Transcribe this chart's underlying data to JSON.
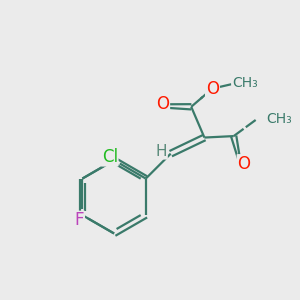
{
  "bg_color": "#ebebeb",
  "bond_color": "#3a7a6a",
  "bond_width": 1.6,
  "atom_colors": {
    "O": "#ff1a00",
    "Cl": "#22bb22",
    "F": "#bb44bb",
    "H": "#5a8a7a",
    "C": "#3a7a6a"
  },
  "font_size_atom": 12,
  "font_size_me": 10
}
